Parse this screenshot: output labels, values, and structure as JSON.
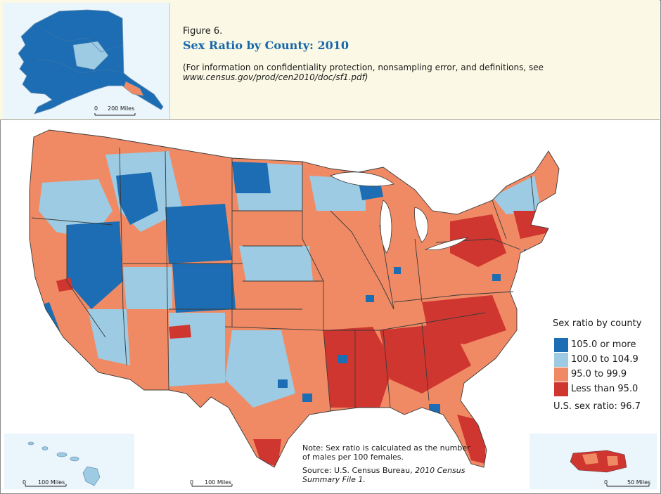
{
  "figure": {
    "label": "Figure 6.",
    "title": "Sex Ratio by County: 2010",
    "info": "(For information on confidentiality protection, nonsampling error, and definitions, see",
    "url": "www.census.gov/prod/cen2010/doc/sf1.pdf)"
  },
  "scales": {
    "alaska": {
      "zero": "0",
      "label": "200 Miles"
    },
    "hawaii": {
      "zero": "0",
      "label": "100 Miles"
    },
    "mainland": {
      "zero": "0",
      "label": "100 Miles"
    },
    "puerto_rico": {
      "zero": "0",
      "label": "50 Miles"
    }
  },
  "legend": {
    "title": "Sex ratio by county",
    "items": [
      {
        "label": "105.0 or more",
        "color": "#1c6db3"
      },
      {
        "label": "100.0 to 104.9",
        "color": "#9ccbe3"
      },
      {
        "label": "95.0 to 99.9",
        "color": "#f08a64"
      },
      {
        "label": "Less than 95.0",
        "color": "#cf3630"
      }
    ]
  },
  "us_ratio": "U.S. sex ratio: 96.7",
  "note": "Note: Sex ratio is calculated as the number of males per 100 females.",
  "source_prefix": "Source: U.S. Census Bureau,",
  "source_title": "2010 Census Summary File 1.",
  "colors": {
    "border": "#3a3a3a",
    "inset_bg": "#eaf5fc",
    "header_bg": "#fbf9e5"
  }
}
